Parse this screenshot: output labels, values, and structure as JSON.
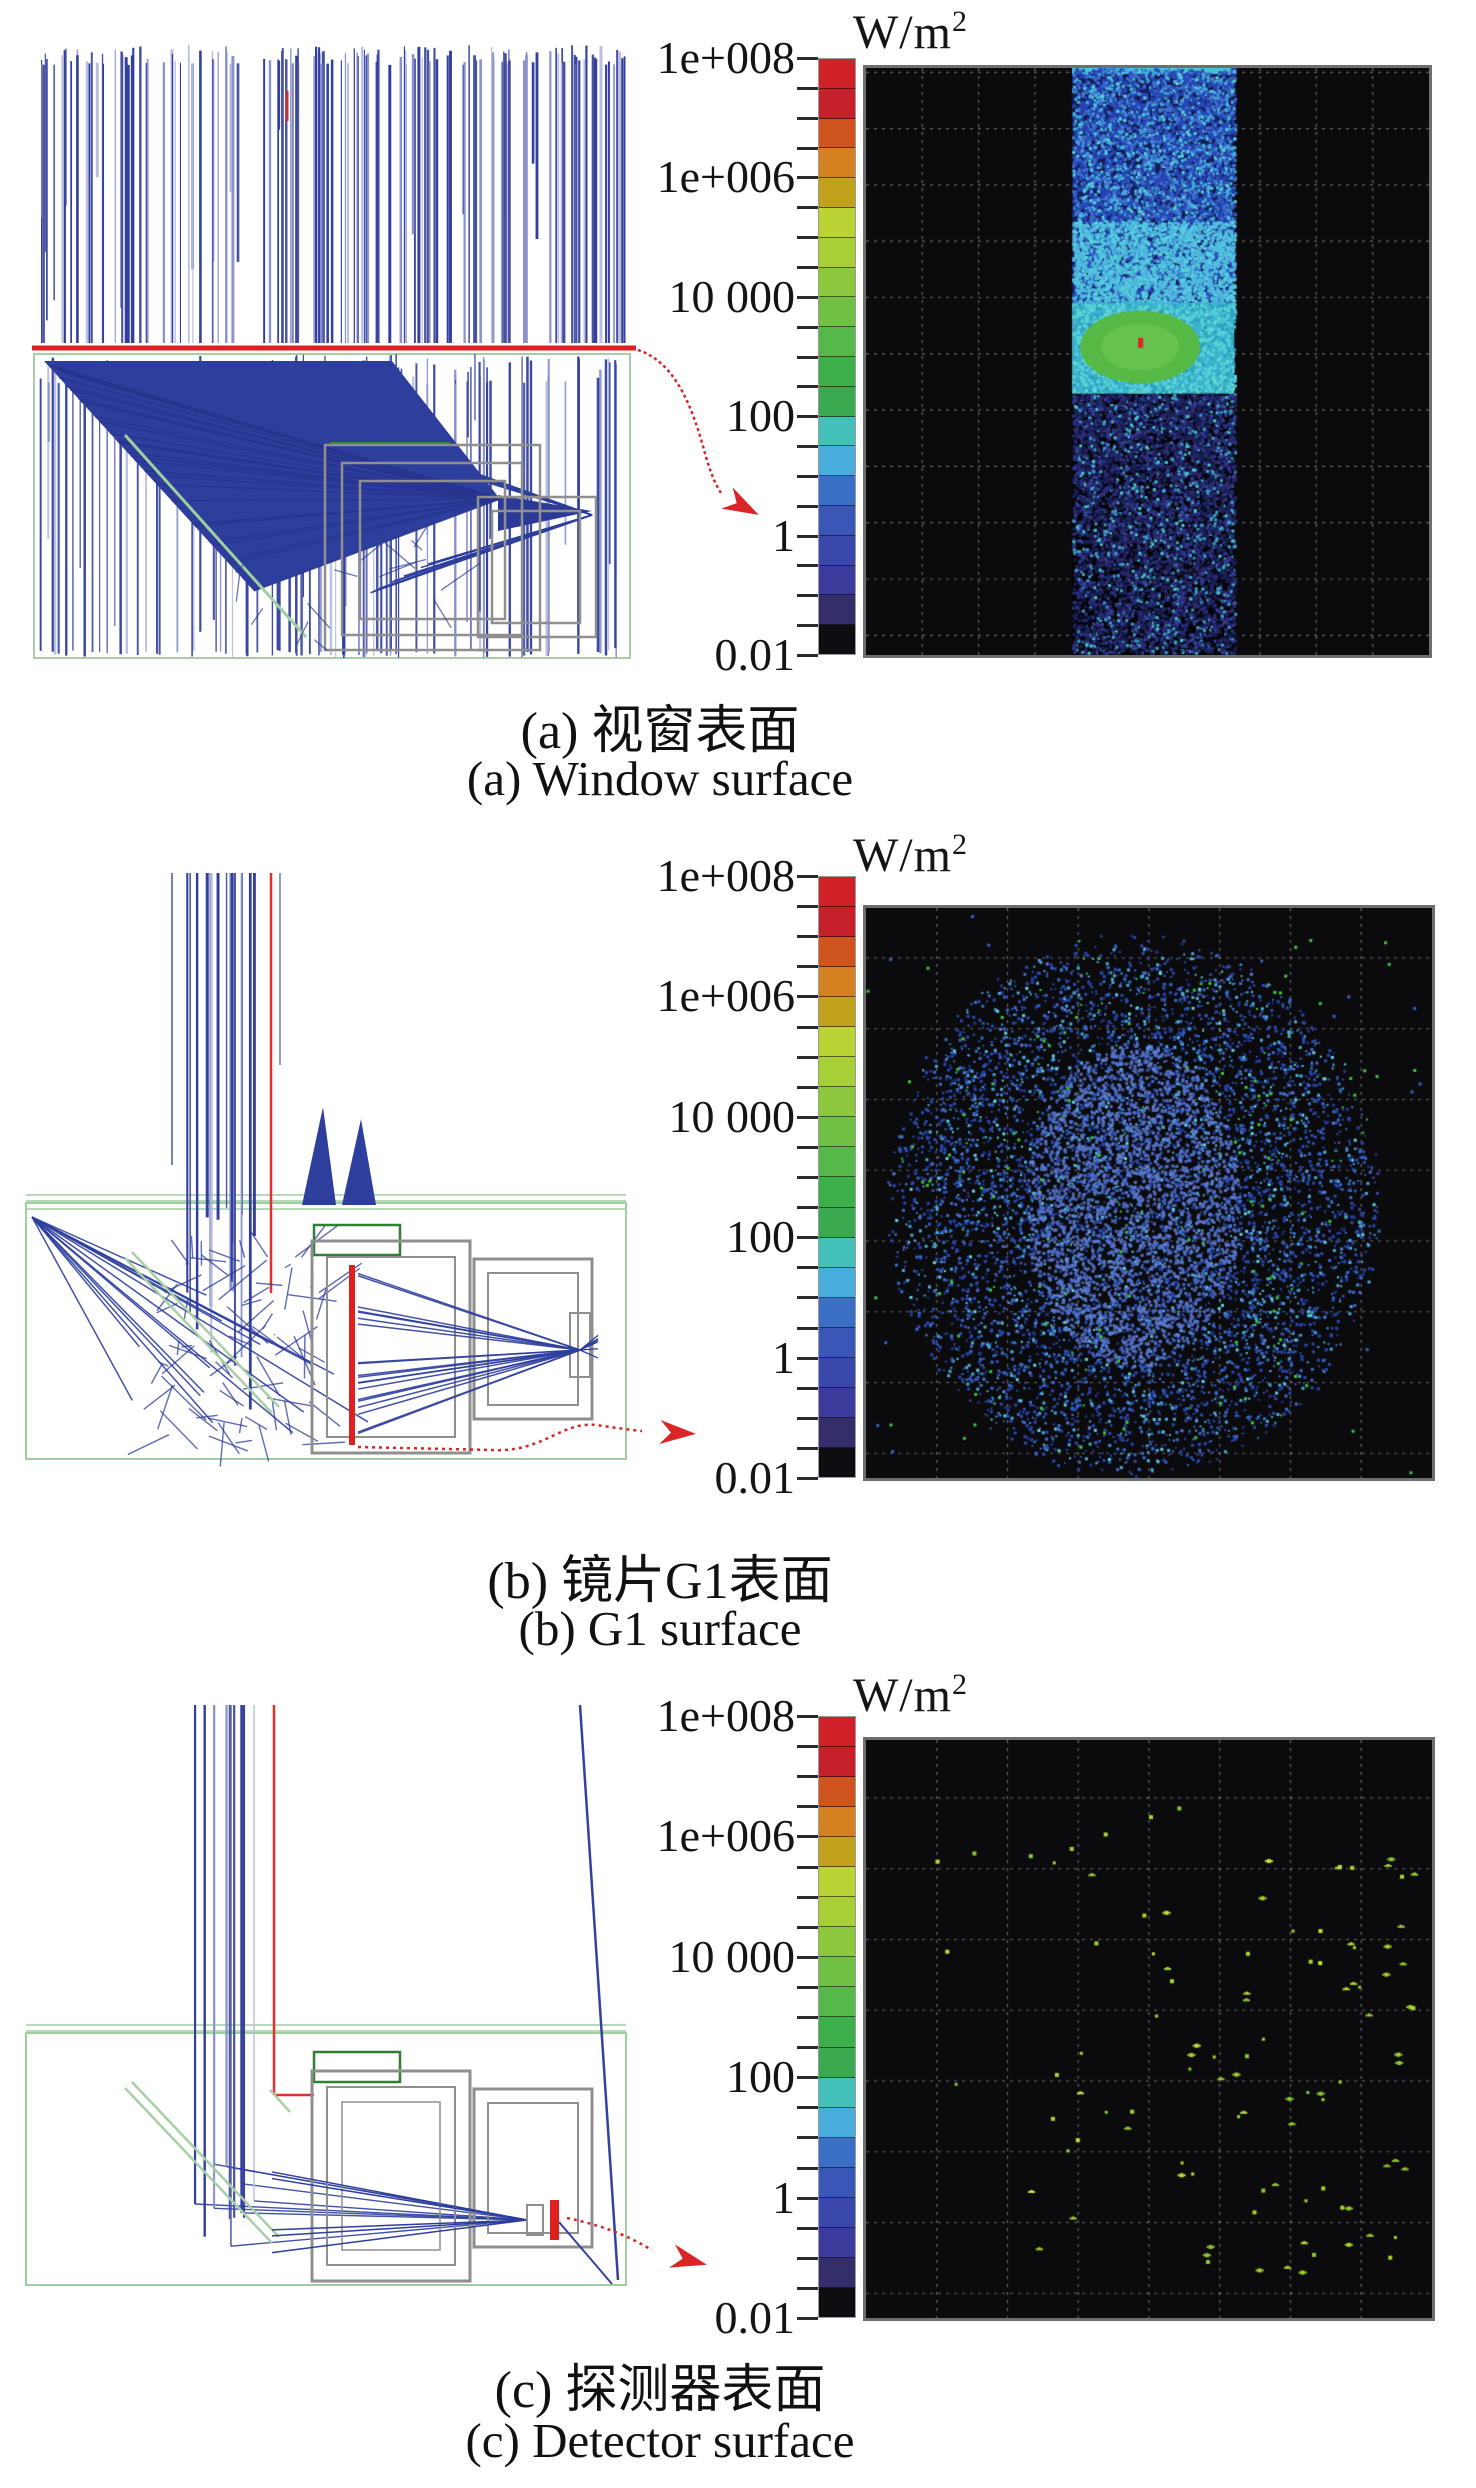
{
  "chart_data": {
    "type": "heatmap",
    "figure_kind": "stray-light simulation: ray-trace diagrams with log-scale irradiance maps",
    "unit_base": "W/m",
    "unit_exp": "2",
    "scale": "logarithmic",
    "colorbar": {
      "segments": 20,
      "tick_labels": [
        "1e+008",
        "1e+006",
        "10 000",
        "100",
        "1",
        "0.01"
      ],
      "max": "1e+008",
      "min": "0.01",
      "segment_colors": [
        "#cf2127",
        "#c6202a",
        "#cf541e",
        "#d2811e",
        "#c2a11d",
        "#bcd335",
        "#a9cf36",
        "#8cc73e",
        "#70c043",
        "#54b948",
        "#3eb04a",
        "#3aa84e",
        "#44c0ba",
        "#49aede",
        "#3b6ec5",
        "#3a57b8",
        "#3a47ab",
        "#3d3b9c",
        "#342e6b",
        "#0d0d12"
      ]
    },
    "panels": [
      {
        "id": "a",
        "caption_zh": "(a) 视窗表面",
        "caption_en": "(a) Window surface",
        "map": {
          "kind": "vertical-band",
          "grid_cols": 10,
          "seed": 11,
          "band": [
            0.366,
            0.654
          ],
          "description": "speckled irradiance band on the window: cyan-blue upper region ~100 W/m2, green hotspot ~10 000 W/m2 with red peak near 1e+008, dark blue/violet lower speckle ~0.01-1 W/m2",
          "upper": [
            [
              "#2746b8",
              45
            ],
            [
              "#3f6fd0",
              25
            ],
            [
              "#44aede",
              20
            ],
            [
              "#59d1e0",
              10
            ]
          ],
          "mid": [
            [
              "#4fb9dd",
              60
            ],
            [
              "#55cfe0",
              40
            ]
          ],
          "cyan": [
            [
              "#55d0dc",
              40
            ],
            [
              "#2f9ec0",
              35
            ],
            [
              "#63d8d0",
              25
            ]
          ],
          "lower": [
            [
              "#1c2158",
              36
            ],
            [
              "#2a2f7e",
              24
            ],
            [
              "#343f9e",
              14
            ],
            [
              "#131240",
              10
            ],
            [
              "#3f9fc8",
              9
            ],
            [
              "#46c8d8",
              4
            ],
            [
              "#3a2a6a",
              3
            ]
          ],
          "hotspot_color": "#57b945",
          "hotspot_inner": "#66c24f",
          "peak_color": "#e02222"
        },
        "rays": {
          "seed": 7,
          "palette": [
            [
              "#323f9e",
              40
            ],
            [
              "#47519f",
              20
            ],
            [
              "#8a93cc",
              22
            ],
            [
              "#b9bfe0",
              18
            ]
          ],
          "red_line": "window surface",
          "green_box": "instrument housing"
        }
      },
      {
        "id": "b",
        "caption_zh": "(b) 镜片G1表面",
        "caption_en": "(b) G1 surface",
        "map": {
          "kind": "disk",
          "grid_cols": 8,
          "seed": 23,
          "n": 15000,
          "outliers": 130,
          "description": "circular speckle of scattered light over lens G1, mostly blue ~0.1-100 W/m2 with sparse green points",
          "dots": [
            [
              "#2b48b0",
              48
            ],
            [
              "#3a6ac8",
              20
            ],
            [
              "#4aaad8",
              15
            ],
            [
              "#62d2e2",
              5
            ],
            [
              "#20348c",
              6
            ],
            [
              "#3fc43f",
              3
            ],
            [
              "#5b7ad8",
              3
            ]
          ],
          "core": [
            [
              "#5272cc",
              55
            ],
            [
              "#617fd4",
              45
            ]
          ],
          "green": "#3fc43f"
        },
        "rays": {
          "seed": 8,
          "palette": [
            [
              "#323f9e",
              40
            ],
            [
              "#47519f",
              20
            ],
            [
              "#8a93cc",
              22
            ],
            [
              "#b9bfe0",
              18
            ]
          ],
          "red_line": "G1 surface highlight"
        }
      },
      {
        "id": "c",
        "caption_zh": "(c) 探测器表面",
        "caption_en": "(c) Detector surface",
        "map": {
          "kind": "sparse",
          "grid_cols": 8,
          "seed": 37,
          "cluster": 74,
          "scatter": 22,
          "description": "sparse yellow-green points reaching the detector, clustered right of centre",
          "dots": [
            [
              "#a8d62c",
              62
            ],
            [
              "#8cc832",
              22
            ],
            [
              "#c2e23a",
              16
            ]
          ]
        },
        "rays": {
          "seed": 9,
          "palette": [
            [
              "#323f9e",
              44
            ],
            [
              "#47519f",
              22
            ],
            [
              "#8a93cc",
              20
            ],
            [
              "#b9bfe0",
              14
            ]
          ],
          "red_mark": "detector surface"
        }
      }
    ]
  }
}
